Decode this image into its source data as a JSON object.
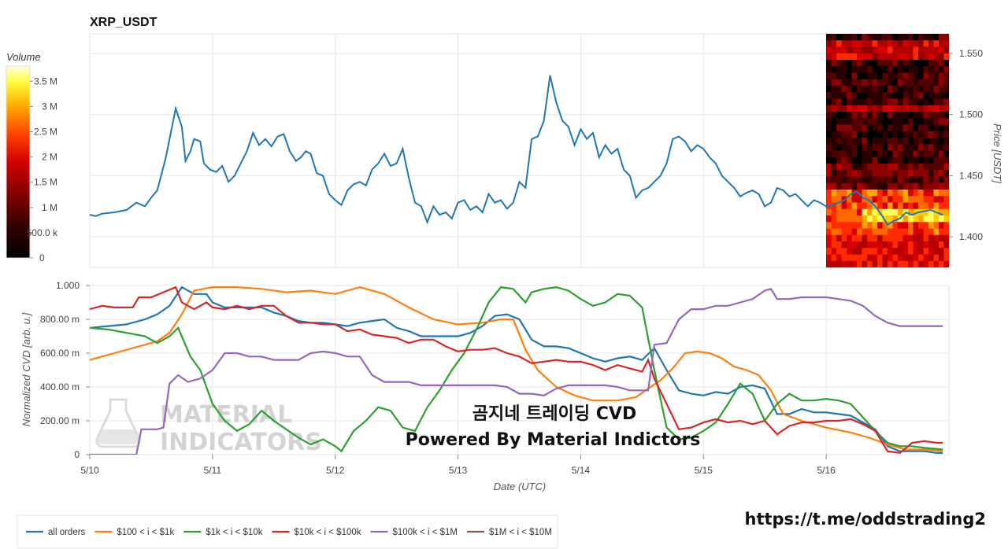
{
  "chart_data": [
    {
      "type": "line",
      "title": "XRP_USDT",
      "ylabel": "Price [USDT]",
      "ylim": [
        1.375,
        1.566
      ],
      "yticks": [
        "1.550",
        "1.500",
        "1.450",
        "1.400"
      ],
      "ytick_values": [
        1.55,
        1.5,
        1.45,
        1.4
      ],
      "x_range": [
        0,
        7.0
      ],
      "x_unit": "days since 5/10 00:00 UTC",
      "grid": true,
      "series": [
        {
          "name": "price",
          "color": "#1f77b4",
          "x": [
            0,
            0.05,
            0.1,
            0.2,
            0.3,
            0.38,
            0.45,
            0.5,
            0.55,
            0.62,
            0.7,
            0.75,
            0.78,
            0.82,
            0.85,
            0.9,
            0.93,
            0.98,
            1.03,
            1.08,
            1.13,
            1.18,
            1.23,
            1.28,
            1.33,
            1.38,
            1.43,
            1.48,
            1.53,
            1.58,
            1.63,
            1.68,
            1.72,
            1.76,
            1.8,
            1.85,
            1.9,
            1.95,
            2.0,
            2.05,
            2.1,
            2.15,
            2.2,
            2.25,
            2.3,
            2.35,
            2.4,
            2.45,
            2.5,
            2.55,
            2.6,
            2.65,
            2.7,
            2.75,
            2.8,
            2.85,
            2.9,
            2.95,
            3.0,
            3.05,
            3.1,
            3.15,
            3.2,
            3.25,
            3.3,
            3.35,
            3.4,
            3.45,
            3.5,
            3.55,
            3.6,
            3.65,
            3.7,
            3.75,
            3.8,
            3.85,
            3.9,
            3.95,
            4.0,
            4.05,
            4.1,
            4.15,
            4.2,
            4.25,
            4.3,
            4.35,
            4.4,
            4.45,
            4.5,
            4.55,
            4.6,
            4.65,
            4.7,
            4.75,
            4.8,
            4.85,
            4.9,
            4.95,
            5.0,
            5.05,
            5.1,
            5.15,
            5.2,
            5.25,
            5.3,
            5.35,
            5.4,
            5.45,
            5.5,
            5.55,
            5.6,
            5.65,
            5.7,
            5.75,
            5.8,
            5.85,
            5.9,
            5.95,
            6.0,
            6.05,
            6.1,
            6.15,
            6.2,
            6.25,
            6.3,
            6.35,
            6.4,
            6.45,
            6.5,
            6.55,
            6.6,
            6.65,
            6.7,
            6.75,
            6.8,
            6.85,
            6.9,
            6.95
          ],
          "y": [
            1.418,
            1.417,
            1.419,
            1.42,
            1.422,
            1.428,
            1.425,
            1.432,
            1.438,
            1.465,
            1.505,
            1.49,
            1.462,
            1.47,
            1.48,
            1.478,
            1.46,
            1.455,
            1.453,
            1.458,
            1.445,
            1.45,
            1.46,
            1.47,
            1.485,
            1.475,
            1.48,
            1.474,
            1.482,
            1.484,
            1.47,
            1.462,
            1.465,
            1.47,
            1.468,
            1.452,
            1.45,
            1.435,
            1.43,
            1.426,
            1.438,
            1.443,
            1.445,
            1.442,
            1.455,
            1.46,
            1.468,
            1.458,
            1.46,
            1.472,
            1.448,
            1.428,
            1.425,
            1.412,
            1.425,
            1.418,
            1.42,
            1.415,
            1.428,
            1.43,
            1.422,
            1.425,
            1.42,
            1.435,
            1.428,
            1.43,
            1.423,
            1.428,
            1.445,
            1.44,
            1.48,
            1.482,
            1.495,
            1.532,
            1.51,
            1.495,
            1.49,
            1.475,
            1.488,
            1.48,
            1.485,
            1.465,
            1.475,
            1.468,
            1.472,
            1.455,
            1.45,
            1.432,
            1.438,
            1.44,
            1.445,
            1.45,
            1.46,
            1.48,
            1.482,
            1.478,
            1.47,
            1.475,
            1.472,
            1.465,
            1.46,
            1.45,
            1.445,
            1.44,
            1.433,
            1.436,
            1.438,
            1.435,
            1.425,
            1.428,
            1.44,
            1.438,
            1.433,
            1.435,
            1.43,
            1.425,
            1.43,
            1.428,
            1.425,
            1.426,
            1.428,
            1.43,
            1.435,
            1.437,
            1.432,
            1.43,
            1.425,
            1.418,
            1.41,
            1.413,
            1.415,
            1.42,
            1.418,
            1.42,
            1.421,
            1.422,
            1.42,
            1.418
          ]
        }
      ],
      "heatmap": {
        "colorscale_title": "Volume",
        "colorbar_ticks": [
          "3.5 M",
          "3 M",
          "2.5 M",
          "2 M",
          "1.5 M",
          "1 M",
          "500.0 k",
          "0"
        ],
        "colorbar_values": [
          3.5,
          3.0,
          2.5,
          2.0,
          1.5,
          1.0,
          0.5,
          0.0
        ],
        "colorbar_range": [
          0,
          3.8
        ],
        "x_start": 6.0,
        "x_end": 7.0
      }
    },
    {
      "type": "line",
      "ylabel": "Normalized CVD [arb. u.]",
      "xlabel": "Date (UTC)",
      "ylim": [
        0,
        1.0
      ],
      "yticks": [
        "1.000",
        "800.00 m",
        "600.00 m",
        "400.00 m",
        "200.00 m",
        "0"
      ],
      "ytick_values": [
        1.0,
        0.8,
        0.6,
        0.4,
        0.2,
        0
      ],
      "xticks": [
        "5/10",
        "5/11",
        "5/12",
        "5/13",
        "5/14",
        "5/15",
        "5/16"
      ],
      "xtick_values": [
        0,
        1,
        2,
        3,
        4,
        5,
        6
      ],
      "x_range": [
        0,
        7.0
      ],
      "grid": true,
      "legend_position": "bottom",
      "series": [
        {
          "name": "all orders",
          "color": "#1f77b4",
          "x": [
            0,
            0.15,
            0.3,
            0.45,
            0.55,
            0.65,
            0.75,
            0.85,
            0.95,
            1.0,
            1.1,
            1.2,
            1.3,
            1.4,
            1.5,
            1.6,
            1.7,
            1.8,
            1.9,
            2.0,
            2.1,
            2.2,
            2.3,
            2.4,
            2.5,
            2.6,
            2.7,
            2.8,
            2.9,
            3.0,
            3.1,
            3.2,
            3.3,
            3.4,
            3.5,
            3.6,
            3.7,
            3.8,
            3.9,
            4.0,
            4.1,
            4.2,
            4.3,
            4.4,
            4.5,
            4.6,
            4.7,
            4.8,
            4.9,
            5.0,
            5.1,
            5.2,
            5.3,
            5.4,
            5.5,
            5.6,
            5.7,
            5.8,
            5.9,
            6.0,
            6.1,
            6.2,
            6.3,
            6.4,
            6.5,
            6.6,
            6.7,
            6.8,
            6.9,
            6.95
          ],
          "y": [
            0.75,
            0.76,
            0.77,
            0.8,
            0.83,
            0.88,
            0.99,
            0.95,
            0.95,
            0.9,
            0.87,
            0.87,
            0.87,
            0.87,
            0.84,
            0.82,
            0.79,
            0.78,
            0.78,
            0.77,
            0.76,
            0.78,
            0.79,
            0.8,
            0.75,
            0.73,
            0.7,
            0.7,
            0.7,
            0.7,
            0.72,
            0.76,
            0.82,
            0.83,
            0.8,
            0.68,
            0.64,
            0.64,
            0.63,
            0.6,
            0.57,
            0.55,
            0.57,
            0.58,
            0.56,
            0.63,
            0.5,
            0.38,
            0.36,
            0.35,
            0.37,
            0.36,
            0.4,
            0.41,
            0.39,
            0.24,
            0.24,
            0.27,
            0.25,
            0.25,
            0.24,
            0.23,
            0.19,
            0.15,
            0.05,
            0.02,
            0.02,
            0.02,
            0.01,
            0.01
          ]
        },
        {
          "name": "$100 < i < $1k",
          "color": "#ff7f0e",
          "x": [
            0,
            0.2,
            0.4,
            0.55,
            0.65,
            0.75,
            0.85,
            1.0,
            1.2,
            1.4,
            1.6,
            1.8,
            2.0,
            2.2,
            2.4,
            2.6,
            2.8,
            3.0,
            3.2,
            3.35,
            3.45,
            3.55,
            3.65,
            3.8,
            3.95,
            4.1,
            4.3,
            4.45,
            4.55,
            4.65,
            4.75,
            4.85,
            4.95,
            5.05,
            5.15,
            5.25,
            5.35,
            5.45,
            5.55,
            5.65,
            5.8,
            6.0,
            6.2,
            6.35,
            6.5,
            6.65,
            6.8,
            6.95
          ],
          "y": [
            0.56,
            0.6,
            0.64,
            0.67,
            0.72,
            0.83,
            0.97,
            0.99,
            0.99,
            0.98,
            0.96,
            0.97,
            0.95,
            0.99,
            0.95,
            0.87,
            0.8,
            0.77,
            0.78,
            0.8,
            0.8,
            0.62,
            0.5,
            0.4,
            0.35,
            0.32,
            0.32,
            0.34,
            0.39,
            0.44,
            0.51,
            0.6,
            0.61,
            0.6,
            0.57,
            0.52,
            0.5,
            0.47,
            0.38,
            0.24,
            0.2,
            0.16,
            0.13,
            0.1,
            0.06,
            0.03,
            0.03,
            0.02
          ]
        },
        {
          "name": "$1k < i < $10k",
          "color": "#2ca02c",
          "x": [
            0,
            0.15,
            0.3,
            0.45,
            0.55,
            0.65,
            0.72,
            0.82,
            0.9,
            1.0,
            1.1,
            1.2,
            1.3,
            1.4,
            1.5,
            1.6,
            1.7,
            1.8,
            1.9,
            2.0,
            2.05,
            2.15,
            2.25,
            2.35,
            2.45,
            2.55,
            2.65,
            2.75,
            2.85,
            2.95,
            3.05,
            3.15,
            3.25,
            3.35,
            3.45,
            3.55,
            3.6,
            3.7,
            3.8,
            3.9,
            4.0,
            4.1,
            4.2,
            4.3,
            4.4,
            4.5,
            4.6,
            4.7,
            4.8,
            4.9,
            5.0,
            5.1,
            5.2,
            5.3,
            5.4,
            5.5,
            5.6,
            5.7,
            5.8,
            5.9,
            6.0,
            6.1,
            6.2,
            6.3,
            6.4,
            6.5,
            6.6,
            6.7,
            6.8,
            6.95
          ],
          "y": [
            0.75,
            0.74,
            0.72,
            0.7,
            0.66,
            0.7,
            0.75,
            0.58,
            0.5,
            0.3,
            0.2,
            0.14,
            0.18,
            0.26,
            0.2,
            0.15,
            0.1,
            0.06,
            0.09,
            0.05,
            0.02,
            0.14,
            0.2,
            0.28,
            0.26,
            0.16,
            0.14,
            0.28,
            0.38,
            0.5,
            0.6,
            0.74,
            0.9,
            0.99,
            0.98,
            0.9,
            0.96,
            0.98,
            0.99,
            0.97,
            0.92,
            0.88,
            0.9,
            0.95,
            0.94,
            0.87,
            0.5,
            0.16,
            0.09,
            0.1,
            0.14,
            0.19,
            0.3,
            0.42,
            0.36,
            0.2,
            0.3,
            0.36,
            0.32,
            0.32,
            0.33,
            0.32,
            0.3,
            0.22,
            0.14,
            0.07,
            0.05,
            0.05,
            0.04,
            0.03
          ]
        },
        {
          "name": "$10k < i < $100k",
          "color": "#d62728",
          "x": [
            0,
            0.1,
            0.2,
            0.35,
            0.4,
            0.5,
            0.6,
            0.7,
            0.75,
            0.85,
            0.95,
            1.0,
            1.1,
            1.2,
            1.3,
            1.4,
            1.5,
            1.6,
            1.7,
            1.8,
            1.9,
            2.0,
            2.1,
            2.2,
            2.3,
            2.4,
            2.5,
            2.6,
            2.7,
            2.8,
            2.9,
            3.0,
            3.1,
            3.2,
            3.3,
            3.4,
            3.5,
            3.6,
            3.7,
            3.8,
            3.9,
            4.0,
            4.1,
            4.2,
            4.3,
            4.4,
            4.5,
            4.55,
            4.6,
            4.7,
            4.8,
            4.9,
            5.0,
            5.1,
            5.2,
            5.3,
            5.4,
            5.5,
            5.6,
            5.7,
            5.8,
            5.9,
            6.0,
            6.1,
            6.2,
            6.3,
            6.4,
            6.5,
            6.6,
            6.7,
            6.8,
            6.9,
            6.95
          ],
          "y": [
            0.86,
            0.88,
            0.87,
            0.87,
            0.93,
            0.93,
            0.96,
            0.99,
            0.9,
            0.86,
            0.9,
            0.87,
            0.86,
            0.88,
            0.86,
            0.88,
            0.88,
            0.82,
            0.78,
            0.78,
            0.77,
            0.77,
            0.73,
            0.74,
            0.71,
            0.7,
            0.69,
            0.66,
            0.68,
            0.68,
            0.64,
            0.61,
            0.62,
            0.62,
            0.63,
            0.6,
            0.58,
            0.54,
            0.55,
            0.56,
            0.55,
            0.55,
            0.53,
            0.5,
            0.53,
            0.51,
            0.49,
            0.56,
            0.45,
            0.3,
            0.15,
            0.16,
            0.19,
            0.21,
            0.19,
            0.2,
            0.18,
            0.2,
            0.12,
            0.17,
            0.19,
            0.19,
            0.2,
            0.2,
            0.21,
            0.18,
            0.14,
            0.02,
            0.01,
            0.07,
            0.08,
            0.07,
            0.07
          ]
        },
        {
          "name": "$100k < i < $1M",
          "color": "#9467bd",
          "x": [
            0,
            0.2,
            0.38,
            0.42,
            0.55,
            0.6,
            0.65,
            0.72,
            0.8,
            0.9,
            1.0,
            1.1,
            1.2,
            1.3,
            1.4,
            1.5,
            1.6,
            1.7,
            1.8,
            1.9,
            2.0,
            2.1,
            2.2,
            2.3,
            2.4,
            2.5,
            2.6,
            2.7,
            2.8,
            2.9,
            3.0,
            3.1,
            3.2,
            3.3,
            3.4,
            3.5,
            3.6,
            3.7,
            3.8,
            3.9,
            4.0,
            4.1,
            4.2,
            4.3,
            4.4,
            4.5,
            4.55,
            4.6,
            4.7,
            4.8,
            4.9,
            5.0,
            5.1,
            5.2,
            5.3,
            5.4,
            5.5,
            5.55,
            5.6,
            5.7,
            5.8,
            5.9,
            6.0,
            6.1,
            6.2,
            6.3,
            6.4,
            6.5,
            6.6,
            6.7,
            6.8,
            6.95
          ],
          "y": [
            0,
            0,
            0,
            0.15,
            0.15,
            0.16,
            0.42,
            0.47,
            0.43,
            0.45,
            0.5,
            0.6,
            0.6,
            0.58,
            0.58,
            0.56,
            0.56,
            0.56,
            0.6,
            0.61,
            0.6,
            0.58,
            0.58,
            0.47,
            0.43,
            0.43,
            0.43,
            0.41,
            0.41,
            0.41,
            0.41,
            0.41,
            0.41,
            0.41,
            0.4,
            0.36,
            0.36,
            0.35,
            0.39,
            0.41,
            0.41,
            0.41,
            0.41,
            0.4,
            0.38,
            0.38,
            0.38,
            0.65,
            0.66,
            0.8,
            0.86,
            0.86,
            0.88,
            0.88,
            0.9,
            0.92,
            0.97,
            0.98,
            0.92,
            0.92,
            0.93,
            0.93,
            0.93,
            0.92,
            0.91,
            0.88,
            0.82,
            0.78,
            0.76,
            0.76,
            0.76,
            0.76
          ]
        },
        {
          "name": "$1M < i < $10M",
          "color": "#8c564b",
          "x": [],
          "y": []
        }
      ]
    }
  ],
  "watermark": {
    "line1": "곰지네 트레이딩 CVD",
    "line2": "Powered By Material Indictors"
  },
  "logo": {
    "line1": "MATERIAL",
    "line2": "INDICATORS"
  },
  "link": "https://t.me/oddstrading2",
  "colors": {
    "background": "#ffffff",
    "grid": "#e6e6e6",
    "heatmap_low": "#000000",
    "heatmap_mid": "#b30000",
    "heatmap_high": "#ffff66"
  }
}
